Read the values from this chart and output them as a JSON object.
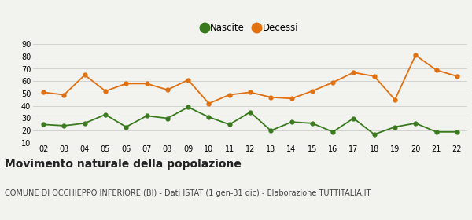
{
  "years": [
    2,
    3,
    4,
    5,
    6,
    7,
    8,
    9,
    10,
    11,
    12,
    13,
    14,
    15,
    16,
    17,
    18,
    19,
    20,
    21,
    22
  ],
  "nascite": [
    25,
    24,
    26,
    33,
    23,
    32,
    30,
    39,
    31,
    25,
    35,
    20,
    27,
    26,
    19,
    30,
    17,
    23,
    26,
    19,
    19
  ],
  "decessi": [
    51,
    49,
    65,
    52,
    58,
    58,
    53,
    61,
    42,
    49,
    51,
    47,
    46,
    52,
    59,
    67,
    64,
    45,
    81,
    69,
    64
  ],
  "nascite_color": "#3a7a1e",
  "decessi_color": "#e07010",
  "background_color": "#f2f2ee",
  "grid_color": "#cccccc",
  "ylim": [
    10,
    90
  ],
  "yticks": [
    10,
    20,
    30,
    40,
    50,
    60,
    70,
    80,
    90
  ],
  "title": "Movimento naturale della popolazione",
  "subtitle": "COMUNE DI OCCHIEPPO INFERIORE (BI) - Dati ISTAT (1 gen-31 dic) - Elaborazione TUTTITALIA.IT",
  "legend_nascite": "Nascite",
  "legend_decessi": "Decessi",
  "title_fontsize": 10,
  "subtitle_fontsize": 7,
  "tick_fontsize": 7,
  "legend_fontsize": 8.5,
  "marker_size": 3.5,
  "linewidth": 1.3
}
